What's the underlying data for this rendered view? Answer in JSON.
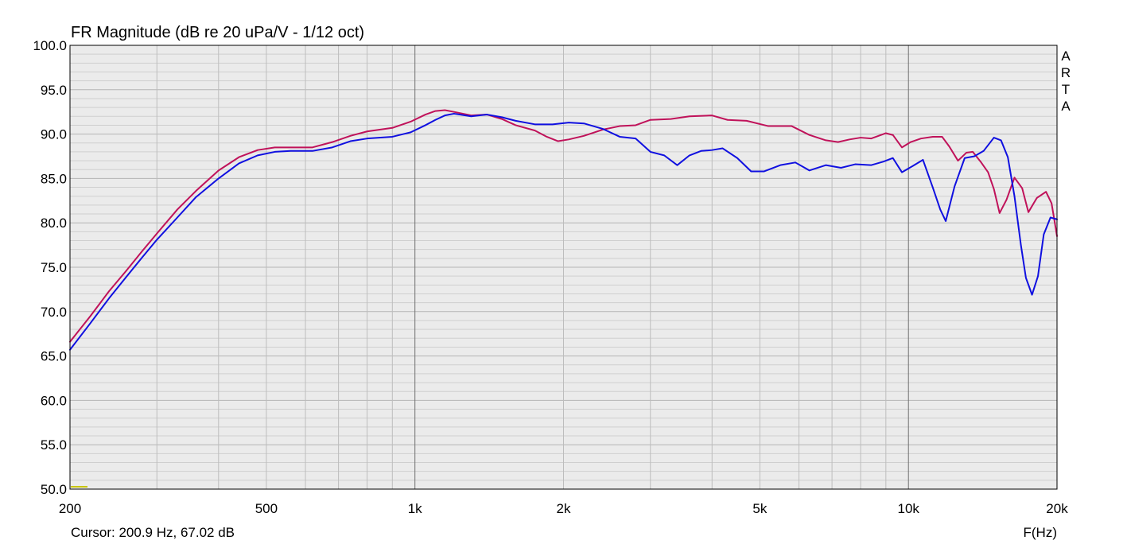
{
  "chart_data": {
    "type": "line",
    "title": "FR Magnitude (dB re 20 uPa/V - 1/12 oct)",
    "watermark": "ARTA",
    "xlabel": "F(Hz)",
    "ylabel": "",
    "x_scale": "log",
    "xlim": [
      200,
      20000
    ],
    "ylim": [
      50,
      100
    ],
    "x_ticks": [
      {
        "value": 200,
        "label": "200"
      },
      {
        "value": 500,
        "label": "500"
      },
      {
        "value": 1000,
        "label": "1k"
      },
      {
        "value": 2000,
        "label": "2k"
      },
      {
        "value": 5000,
        "label": "5k"
      },
      {
        "value": 10000,
        "label": "10k"
      },
      {
        "value": 20000,
        "label": "20k"
      }
    ],
    "y_ticks": [
      "50.0",
      "55.0",
      "60.0",
      "65.0",
      "70.0",
      "75.0",
      "80.0",
      "85.0",
      "90.0",
      "95.0",
      "100.0"
    ],
    "grid": true,
    "background": "#ebebeb",
    "cursor_readout": "Cursor: 200.9 Hz, 67.02 dB",
    "series": [
      {
        "color": "#c0125a",
        "points": [
          [
            200,
            66.6
          ],
          [
            220,
            69.5
          ],
          [
            240,
            72.3
          ],
          [
            260,
            74.6
          ],
          [
            280,
            76.8
          ],
          [
            300,
            78.8
          ],
          [
            330,
            81.5
          ],
          [
            360,
            83.6
          ],
          [
            400,
            85.9
          ],
          [
            440,
            87.4
          ],
          [
            480,
            88.2
          ],
          [
            520,
            88.5
          ],
          [
            560,
            88.5
          ],
          [
            620,
            88.5
          ],
          [
            680,
            89.1
          ],
          [
            740,
            89.8
          ],
          [
            800,
            90.3
          ],
          [
            900,
            90.7
          ],
          [
            980,
            91.4
          ],
          [
            1050,
            92.2
          ],
          [
            1100,
            92.6
          ],
          [
            1150,
            92.7
          ],
          [
            1200,
            92.5
          ],
          [
            1300,
            92.1
          ],
          [
            1400,
            92.2
          ],
          [
            1500,
            91.7
          ],
          [
            1600,
            91.0
          ],
          [
            1750,
            90.4
          ],
          [
            1850,
            89.7
          ],
          [
            1950,
            89.2
          ],
          [
            2050,
            89.4
          ],
          [
            2200,
            89.8
          ],
          [
            2400,
            90.5
          ],
          [
            2600,
            90.9
          ],
          [
            2800,
            91.0
          ],
          [
            3000,
            91.6
          ],
          [
            3300,
            91.7
          ],
          [
            3600,
            92.0
          ],
          [
            4000,
            92.1
          ],
          [
            4300,
            91.6
          ],
          [
            4700,
            91.5
          ],
          [
            5200,
            90.9
          ],
          [
            5800,
            90.9
          ],
          [
            6300,
            89.9
          ],
          [
            6800,
            89.3
          ],
          [
            7200,
            89.1
          ],
          [
            7600,
            89.4
          ],
          [
            8000,
            89.6
          ],
          [
            8400,
            89.5
          ],
          [
            8800,
            89.9
          ],
          [
            9000,
            90.1
          ],
          [
            9300,
            89.9
          ],
          [
            9700,
            88.5
          ],
          [
            10100,
            89.1
          ],
          [
            10600,
            89.5
          ],
          [
            11200,
            89.7
          ],
          [
            11700,
            89.7
          ],
          [
            12100,
            88.6
          ],
          [
            12600,
            87.0
          ],
          [
            13100,
            87.9
          ],
          [
            13500,
            88.0
          ],
          [
            14000,
            86.9
          ],
          [
            14500,
            85.7
          ],
          [
            14900,
            83.8
          ],
          [
            15300,
            81.1
          ],
          [
            15800,
            82.6
          ],
          [
            16400,
            85.1
          ],
          [
            17000,
            83.9
          ],
          [
            17500,
            81.2
          ],
          [
            18200,
            82.8
          ],
          [
            19000,
            83.5
          ],
          [
            19500,
            82.2
          ],
          [
            20000,
            78.5
          ]
        ]
      },
      {
        "color": "#1010e0",
        "points": [
          [
            200,
            65.7
          ],
          [
            220,
            68.7
          ],
          [
            240,
            71.5
          ],
          [
            260,
            73.9
          ],
          [
            280,
            76.1
          ],
          [
            300,
            78.1
          ],
          [
            330,
            80.6
          ],
          [
            360,
            82.9
          ],
          [
            400,
            85.0
          ],
          [
            440,
            86.7
          ],
          [
            480,
            87.6
          ],
          [
            520,
            88.0
          ],
          [
            560,
            88.1
          ],
          [
            620,
            88.1
          ],
          [
            680,
            88.5
          ],
          [
            740,
            89.2
          ],
          [
            800,
            89.5
          ],
          [
            900,
            89.7
          ],
          [
            980,
            90.2
          ],
          [
            1050,
            91.0
          ],
          [
            1100,
            91.6
          ],
          [
            1150,
            92.1
          ],
          [
            1200,
            92.3
          ],
          [
            1300,
            92.0
          ],
          [
            1400,
            92.2
          ],
          [
            1500,
            91.9
          ],
          [
            1600,
            91.5
          ],
          [
            1750,
            91.1
          ],
          [
            1900,
            91.1
          ],
          [
            2050,
            91.3
          ],
          [
            2200,
            91.2
          ],
          [
            2400,
            90.6
          ],
          [
            2600,
            89.7
          ],
          [
            2800,
            89.5
          ],
          [
            3000,
            88.0
          ],
          [
            3200,
            87.6
          ],
          [
            3400,
            86.5
          ],
          [
            3600,
            87.6
          ],
          [
            3800,
            88.1
          ],
          [
            4000,
            88.2
          ],
          [
            4200,
            88.4
          ],
          [
            4500,
            87.3
          ],
          [
            4800,
            85.8
          ],
          [
            5100,
            85.8
          ],
          [
            5500,
            86.5
          ],
          [
            5900,
            86.8
          ],
          [
            6300,
            85.9
          ],
          [
            6800,
            86.5
          ],
          [
            7300,
            86.2
          ],
          [
            7800,
            86.6
          ],
          [
            8400,
            86.5
          ],
          [
            8900,
            86.9
          ],
          [
            9300,
            87.3
          ],
          [
            9700,
            85.7
          ],
          [
            10200,
            86.4
          ],
          [
            10700,
            87.1
          ],
          [
            11200,
            84.0
          ],
          [
            11600,
            81.5
          ],
          [
            11900,
            80.2
          ],
          [
            12400,
            84.1
          ],
          [
            13000,
            87.3
          ],
          [
            13600,
            87.5
          ],
          [
            14200,
            88.1
          ],
          [
            14900,
            89.6
          ],
          [
            15400,
            89.3
          ],
          [
            15900,
            87.4
          ],
          [
            16400,
            83.0
          ],
          [
            16900,
            77.5
          ],
          [
            17300,
            73.8
          ],
          [
            17800,
            71.9
          ],
          [
            18300,
            74.0
          ],
          [
            18800,
            78.7
          ],
          [
            19400,
            80.6
          ],
          [
            20000,
            80.4
          ]
        ]
      }
    ]
  }
}
